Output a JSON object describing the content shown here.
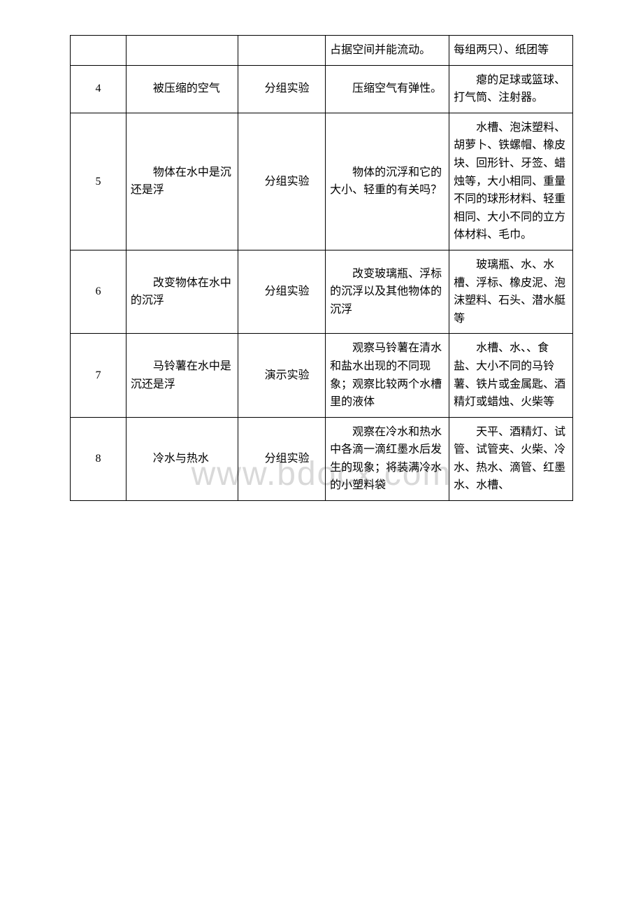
{
  "watermark": "www.bdocx.com",
  "table": {
    "rows": [
      {
        "num": "",
        "title": "",
        "type": "",
        "content": "占据空间并能流动。",
        "materials": "每组两只）、纸团等"
      },
      {
        "num": "4",
        "title": "被压缩的空气",
        "type": "分组实验",
        "content": "压缩空气有弹性。",
        "materials": "瘪的足球或篮球、打气筒、注射器。"
      },
      {
        "num": "5",
        "title": "物体在水中是沉还是浮",
        "type": "分组实验",
        "content": "物体的沉浮和它的大小、轻重的有关吗？",
        "materials": "水槽、泡沫塑料、胡萝卜、铁螺帽、橡皮块、回形针、牙签、蜡烛等，大小相同、重量不同的球形材料、轻重相同、大小不同的立方体材料、毛巾。"
      },
      {
        "num": "6",
        "title": "改变物体在水中的沉浮",
        "type": "分组实验",
        "content": "改变玻璃瓶、浮标的沉浮以及其他物体的沉浮",
        "materials": "玻璃瓶、水、水槽、浮标、橡皮泥、泡沫塑料、石头、潜水艇等"
      },
      {
        "num": "7",
        "title": "马铃薯在水中是沉还是浮",
        "type": "演示实验",
        "content": "观察马铃薯在清水和盐水出现的不同现象；观察比较两个水槽里的液体",
        "materials": "水槽、水、、食盐、大小不同的马铃薯、铁片或金属匙、酒精灯或蜡烛、火柴等"
      },
      {
        "num": "8",
        "title": "冷水与热水",
        "type": "分组实验",
        "content": "观察在冷水和热水中各滴一滴红墨水后发生的现象；将装满冷水的小塑料袋",
        "materials": "天平、酒精灯、试管、试管夹、火柴、冷水、热水、滴管、红墨水、水槽、"
      }
    ]
  }
}
